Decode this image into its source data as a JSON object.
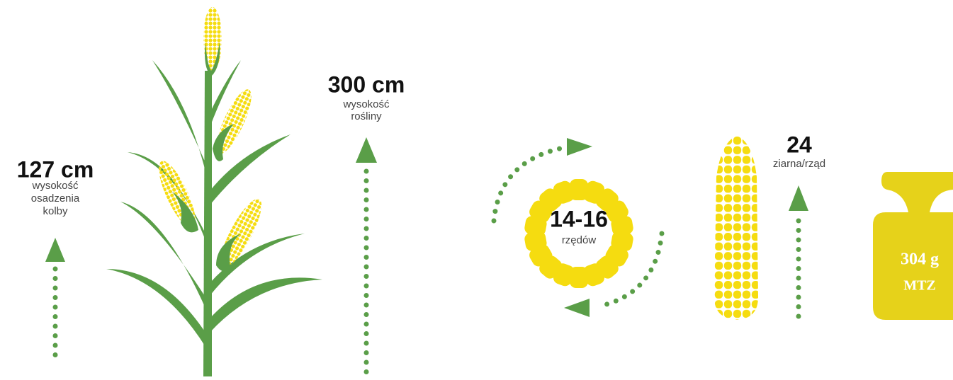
{
  "plant_height": {
    "value": "300 cm",
    "label_lines": [
      "wysokość",
      "rośliny"
    ]
  },
  "ear_height": {
    "value": "127 cm",
    "label_lines": [
      "wysokość",
      "osadzenia",
      "kolby"
    ]
  },
  "rows": {
    "value": "14-16",
    "label": "rzędów"
  },
  "kernels": {
    "value": "24",
    "label": "ziarna/rząd"
  },
  "weight": {
    "value": "304 g",
    "label": "MTZ"
  }
}
